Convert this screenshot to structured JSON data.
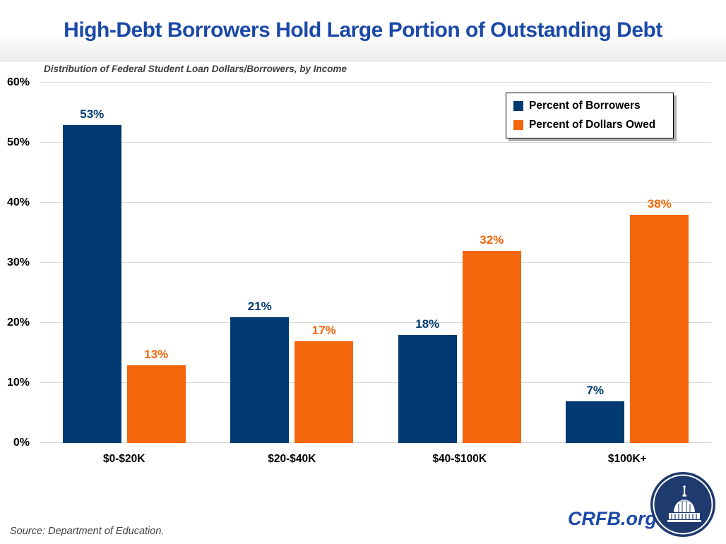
{
  "header": {
    "title": "High-Debt Borrowers Hold Large Portion of Outstanding Debt"
  },
  "subtitle": "Distribution of Federal Student Loan Dollars/Borrowers, by Income",
  "legend": [
    {
      "label": "Percent of Borrowers",
      "color": "#003a70"
    },
    {
      "label": "Percent of Dollars Owed",
      "color": "#f4660b"
    }
  ],
  "chart_data": {
    "type": "bar",
    "title": "High-Debt Borrowers Hold Large Portion of Outstanding Debt",
    "subtitle": "Distribution of Federal Student Loan Dollars/Borrowers, by Income",
    "categories": [
      "$0-$20K",
      "$20-$40K",
      "$40-$100K",
      "$100K+"
    ],
    "series": [
      {
        "name": "Percent of Borrowers",
        "color": "#003a70",
        "values": [
          53,
          21,
          18,
          7
        ],
        "labels": [
          "53%",
          "21%",
          "18%",
          "7%"
        ]
      },
      {
        "name": "Percent of Dollars Owed",
        "color": "#f4660b",
        "values": [
          13,
          17,
          32,
          38
        ],
        "labels": [
          "13%",
          "17%",
          "32%",
          "38%"
        ]
      }
    ],
    "xlabel": "",
    "ylabel": "",
    "ylim": [
      0,
      60
    ],
    "yticks": [
      "0%",
      "10%",
      "20%",
      "30%",
      "40%",
      "50%",
      "60%"
    ],
    "grid": true,
    "legend_position": "top-right"
  },
  "footer": {
    "source": "Source: Department of Education.",
    "brand": "CRFB.org"
  },
  "colors": {
    "title_blue": "#1b49a8",
    "navy": "#003a70",
    "orange": "#f4660b",
    "gridline": "#d9d9d9",
    "subtitle_gray": "#3f3f3f",
    "legend_shadow": "#b0b0b0",
    "logo_navy": "#1e3a6e"
  }
}
